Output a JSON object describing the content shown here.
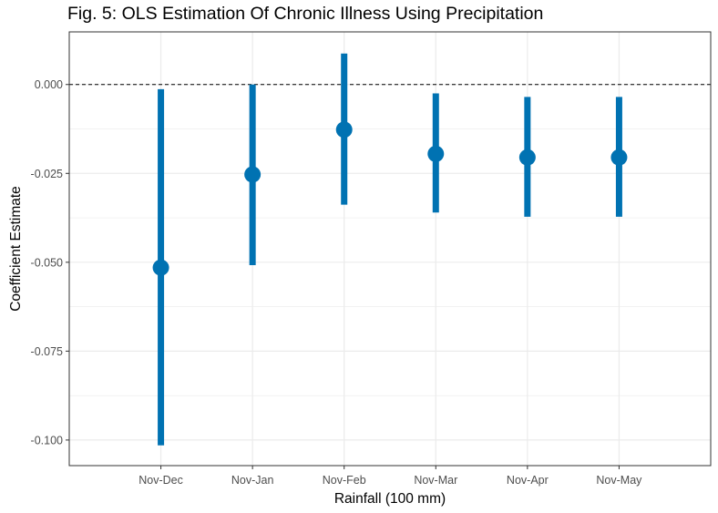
{
  "chart_data": {
    "type": "scatter",
    "style": "point-range",
    "title": "Fig. 5: OLS Estimation Of Chronic Illness Using Precipitation",
    "xlabel": "Rainfall (100 mm)",
    "ylabel": "Coefficient Estimate",
    "categories": [
      "Nov-Dec",
      "Nov-Jan",
      "Nov-Feb",
      "Nov-Mar",
      "Nov-Apr",
      "Nov-May"
    ],
    "series": [
      {
        "estimates": [
          -0.0515,
          -0.0253,
          -0.0127,
          -0.0195,
          -0.0205,
          -0.0205
        ],
        "lower": [
          -0.1015,
          -0.0508,
          -0.0338,
          -0.036,
          -0.0372,
          -0.0372
        ],
        "upper": [
          -0.0013,
          0.0,
          0.0087,
          -0.0025,
          -0.0035,
          -0.0035
        ]
      }
    ],
    "ylim": [
      -0.1072,
      0.0148
    ],
    "yticks": [
      0.0,
      -0.025,
      -0.05,
      -0.075,
      -0.1
    ],
    "ytick_labels": [
      "0.000",
      "-0.025",
      "-0.050",
      "-0.075",
      "-0.100"
    ],
    "reference_line": 0,
    "grid": true,
    "colors": {
      "series": "#0072b2",
      "grid": "#ebebeb",
      "panel_border": "#333333",
      "reference_line": "#000000",
      "tick_text": "#4d4d4d"
    }
  }
}
